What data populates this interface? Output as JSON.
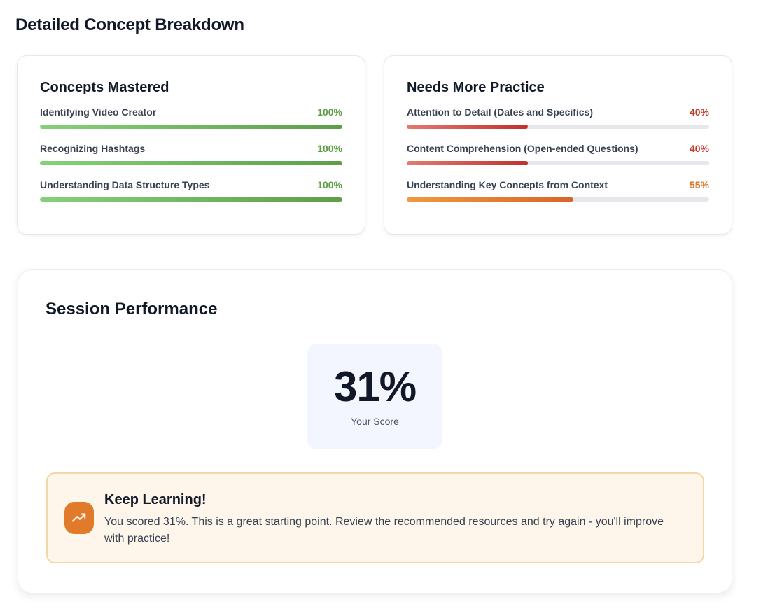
{
  "page_title": "Detailed Concept Breakdown",
  "mastered": {
    "title": "Concepts Mastered",
    "items": [
      {
        "label": "Identifying Video Creator",
        "percent_text": "100%",
        "percent": 100
      },
      {
        "label": "Recognizing Hashtags",
        "percent_text": "100%",
        "percent": 100
      },
      {
        "label": "Understanding Data Structure Types",
        "percent_text": "100%",
        "percent": 100
      }
    ]
  },
  "practice": {
    "title": "Needs More Practice",
    "items": [
      {
        "label": "Attention to Detail (Dates and Specifics)",
        "percent_text": "40%",
        "percent": 40
      },
      {
        "label": "Content Comprehension (Open-ended Questions)",
        "percent_text": "40%",
        "percent": 40
      },
      {
        "label": "Understanding Key Concepts from Context",
        "percent_text": "55%",
        "percent": 55
      }
    ]
  },
  "session": {
    "title": "Session Performance",
    "score": "31%",
    "score_label": "Your Score"
  },
  "alert": {
    "icon": "trending-up-icon",
    "title": "Keep Learning!",
    "message": "You scored 31%. This is a great starting point. Review the recommended resources and try again - you'll improve with practice!"
  },
  "colors": {
    "mastered": "#5a9e45",
    "low": "#c0392b",
    "medium": "#d9762a",
    "alert_icon_bg": "#e17a2a"
  }
}
